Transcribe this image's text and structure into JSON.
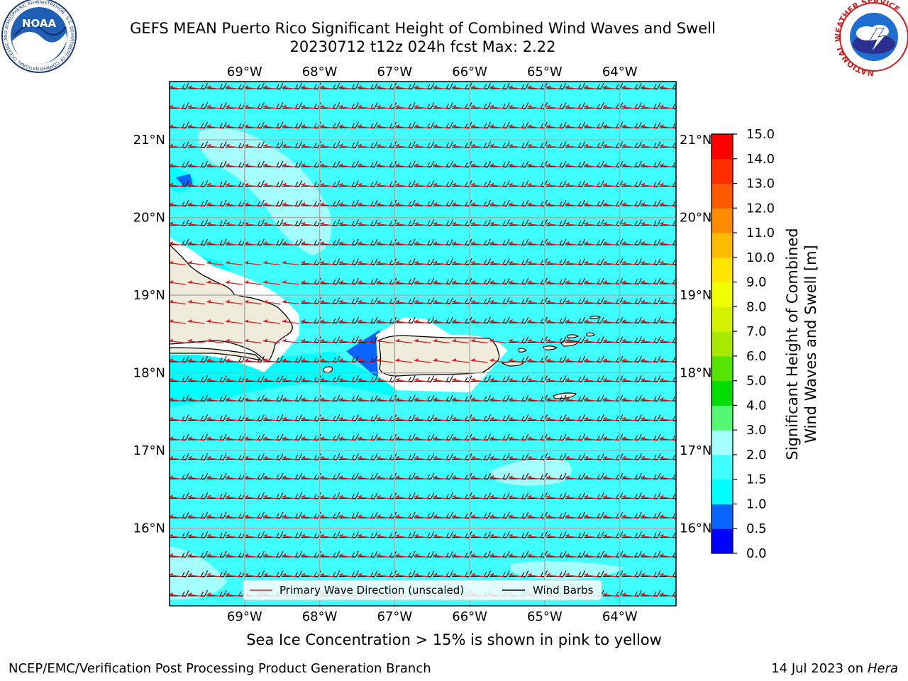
{
  "title": {
    "line1": "GEFS MEAN Puerto Rico Significant Height of Combined Wind Waves and Swell",
    "line2": "20230712 t12z 024h fcst   Max: 2.22"
  },
  "logos": {
    "left_text": "NOAA",
    "left_ring": "NATIONAL OCEANIC AND ATMOSPHERIC ADMINISTRATION · U.S. DEPARTMENT OF COMMERCE",
    "right_ring": "NATIONAL WEATHER SERVICE"
  },
  "map": {
    "lon_labels": [
      "69°W",
      "68°W",
      "67°W",
      "66°W",
      "65°W",
      "64°W"
    ],
    "lat_labels": [
      "21°N",
      "20°N",
      "19°N",
      "18°N",
      "17°N",
      "16°N"
    ],
    "lon_values": [
      -69,
      -68,
      -67,
      -66,
      -65,
      -64
    ],
    "lat_values": [
      21,
      20,
      19,
      18,
      17,
      16
    ],
    "extent": {
      "lon": [
        -70,
        -63.25
      ],
      "lat": [
        15,
        21.75
      ]
    },
    "wave_direction_deg_from": 90,
    "legend": {
      "wave": "Primary Wave Direction (unscaled)",
      "barb": "Wind Barbs"
    },
    "colors": {
      "ocean": "#40ffff",
      "land": "#efecdc",
      "wave_arrow": "#e41a1c"
    }
  },
  "colorbar": {
    "label_line1": "Significant Height of Combined",
    "label_line2": "Wind Waves and Swell [m]",
    "ticks": [
      "0.0",
      "0.5",
      "1.0",
      "1.5",
      "2.0",
      "3.0",
      "4.0",
      "5.0",
      "6.0",
      "7.0",
      "8.0",
      "9.0",
      "10.0",
      "11.0",
      "12.0",
      "13.0",
      "14.0",
      "15.0"
    ],
    "colors": [
      "#0000ff",
      "#0a64ff",
      "#00ffff",
      "#40ffff",
      "#a6ffff",
      "#53f774",
      "#00dd00",
      "#54e400",
      "#a9e900",
      "#d3f200",
      "#f0ff00",
      "#ffe600",
      "#ffbb00",
      "#ff8c00",
      "#ff5a00",
      "#ff2d00",
      "#ff0000"
    ]
  },
  "note": "Sea Ice Concentration > 15% is shown in pink to yellow",
  "footer": {
    "left": "NCEP/EMC/Verification Post Processing Product Generation Branch",
    "right_prefix": "14 Jul 2023 on ",
    "right_host": "Hera"
  }
}
